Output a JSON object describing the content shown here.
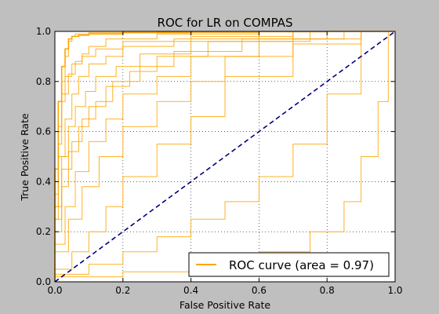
{
  "chart_data": {
    "type": "line",
    "title": "ROC for LR on COMPAS",
    "xlabel": "False Positive Rate",
    "ylabel": "True Positive Rate",
    "xlim": [
      0.0,
      1.0
    ],
    "ylim": [
      0.0,
      1.0
    ],
    "xticks": [
      "0.0",
      "0.2",
      "0.4",
      "0.6",
      "0.8",
      "1.0"
    ],
    "yticks": [
      "0.0",
      "0.2",
      "0.4",
      "0.6",
      "0.8",
      "1.0"
    ],
    "grid": true,
    "legend": {
      "placement": "lower-right",
      "entries": [
        "ROC curve (area = 0.97)"
      ]
    },
    "colors": {
      "curve": "#ffa500",
      "diagonal": "#000080",
      "background": "#bfbfbf",
      "plot_bg": "#ffffff"
    },
    "series": [
      {
        "label": "ROC curve (area = 0.97)",
        "x": [
          0.0,
          0.01,
          0.02,
          0.03,
          0.04,
          0.05,
          0.07,
          0.1,
          0.2,
          0.4,
          0.6,
          0.8,
          1.0
        ],
        "y": [
          0.0,
          0.45,
          0.72,
          0.86,
          0.93,
          0.97,
          0.98,
          0.985,
          0.99,
          0.995,
          0.997,
          0.999,
          1.0
        ]
      },
      {
        "x": [
          0.0,
          0.01,
          0.02,
          0.03,
          0.04,
          0.05,
          0.06,
          0.1,
          0.3,
          0.6,
          1.0
        ],
        "y": [
          0.0,
          0.35,
          0.62,
          0.8,
          0.9,
          0.96,
          0.98,
          0.99,
          0.995,
          0.998,
          1.0
        ]
      },
      {
        "x": [
          0.0,
          0.01,
          0.02,
          0.04,
          0.06,
          0.08,
          0.1,
          0.15,
          0.3,
          0.6,
          1.0
        ],
        "y": [
          0.0,
          0.3,
          0.55,
          0.75,
          0.83,
          0.88,
          0.91,
          0.94,
          0.97,
          0.99,
          1.0
        ]
      },
      {
        "x": [
          0.0,
          0.01,
          0.03,
          0.05,
          0.07,
          0.1,
          0.15,
          0.2,
          0.35,
          0.6,
          1.0
        ],
        "y": [
          0.0,
          0.25,
          0.5,
          0.65,
          0.75,
          0.82,
          0.87,
          0.9,
          0.94,
          0.97,
          1.0
        ]
      },
      {
        "x": [
          0.0,
          0.02,
          0.04,
          0.06,
          0.09,
          0.12,
          0.18,
          0.25,
          0.4,
          0.7,
          1.0
        ],
        "y": [
          0.0,
          0.3,
          0.5,
          0.62,
          0.7,
          0.76,
          0.82,
          0.86,
          0.91,
          0.96,
          1.0
        ]
      },
      {
        "x": [
          0.0,
          0.02,
          0.05,
          0.08,
          0.12,
          0.17,
          0.25,
          0.35,
          0.55,
          0.8,
          1.0
        ],
        "y": [
          0.0,
          0.25,
          0.45,
          0.56,
          0.65,
          0.72,
          0.8,
          0.86,
          0.92,
          0.97,
          1.0
        ]
      },
      {
        "x": [
          0.0,
          0.02,
          0.04,
          0.07,
          0.1,
          0.15,
          0.22,
          0.3,
          0.45,
          0.75,
          1.0
        ],
        "y": [
          0.0,
          0.2,
          0.38,
          0.52,
          0.62,
          0.7,
          0.78,
          0.84,
          0.9,
          0.96,
          1.0
        ]
      },
      {
        "x": [
          0.0,
          0.01,
          0.02,
          0.03,
          0.05,
          0.08,
          0.12,
          0.2,
          0.4,
          0.7,
          1.0
        ],
        "y": [
          0.0,
          0.4,
          0.6,
          0.72,
          0.82,
          0.87,
          0.9,
          0.93,
          0.96,
          0.98,
          1.0
        ]
      },
      {
        "x": [
          0.0,
          0.03,
          0.06,
          0.1,
          0.15,
          0.2,
          0.3,
          0.4,
          0.6,
          0.85,
          1.0
        ],
        "y": [
          0.0,
          0.15,
          0.3,
          0.44,
          0.56,
          0.65,
          0.75,
          0.82,
          0.9,
          0.97,
          1.0
        ]
      },
      {
        "x": [
          0.0,
          0.04,
          0.08,
          0.13,
          0.2,
          0.3,
          0.4,
          0.5,
          0.7,
          0.9,
          1.0
        ],
        "y": [
          0.0,
          0.12,
          0.25,
          0.38,
          0.5,
          0.62,
          0.72,
          0.8,
          0.9,
          0.97,
          1.0
        ]
      },
      {
        "x": [
          0.0,
          0.05,
          0.1,
          0.15,
          0.2,
          0.3,
          0.4,
          0.5,
          0.7,
          0.9,
          1.0
        ],
        "y": [
          0.0,
          0.05,
          0.12,
          0.2,
          0.3,
          0.42,
          0.55,
          0.66,
          0.82,
          0.95,
          1.0
        ]
      },
      {
        "x": [
          0.0,
          0.1,
          0.2,
          0.3,
          0.4,
          0.5,
          0.6,
          0.7,
          0.8,
          0.9,
          1.0
        ],
        "y": [
          0.0,
          0.03,
          0.07,
          0.12,
          0.18,
          0.25,
          0.32,
          0.42,
          0.55,
          0.75,
          1.0
        ]
      },
      {
        "x": [
          0.0,
          0.2,
          0.4,
          0.6,
          0.75,
          0.85,
          0.9,
          0.95,
          0.98,
          1.0
        ],
        "y": [
          0.0,
          0.02,
          0.04,
          0.07,
          0.12,
          0.2,
          0.32,
          0.5,
          0.72,
          1.0
        ]
      }
    ]
  }
}
